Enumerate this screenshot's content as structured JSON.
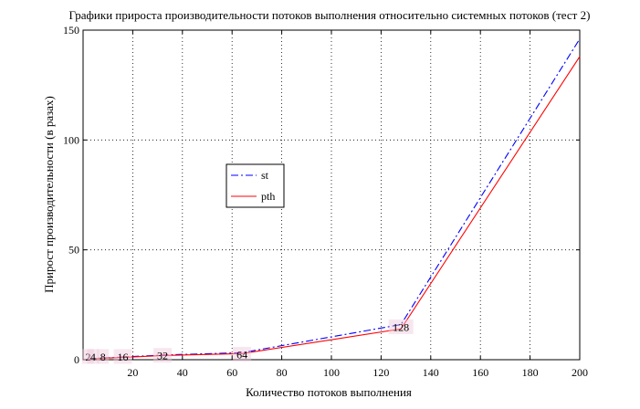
{
  "chart_data": {
    "type": "line",
    "title": "Графики прироста производительности потоков выполнения относительно системных потоков (тест 2)",
    "xlabel": "Количество потоков выполнения",
    "ylabel": "Прирост производительности (в разах)",
    "xlim": [
      0,
      200
    ],
    "ylim": [
      0,
      150
    ],
    "xticks": [
      20,
      40,
      60,
      80,
      100,
      120,
      140,
      160,
      180,
      200
    ],
    "yticks": [
      0,
      50,
      100,
      150
    ],
    "grid": true,
    "legend_position": "center-left",
    "series": [
      {
        "name": "st",
        "color": "#0000ff",
        "style": "dash-dot",
        "x": [
          2,
          4,
          8,
          16,
          32,
          64,
          128,
          200
        ],
        "y": [
          0.3,
          0.5,
          0.8,
          1.2,
          2.1,
          3.2,
          16,
          146
        ]
      },
      {
        "name": "pth",
        "color": "#ff0000",
        "style": "solid",
        "x": [
          2,
          4,
          8,
          16,
          32,
          64,
          128,
          200
        ],
        "y": [
          0.2,
          0.4,
          0.7,
          1.0,
          1.9,
          2.8,
          14,
          138
        ]
      }
    ],
    "annotations": [
      {
        "text": "2",
        "x": 2,
        "y": 1.5
      },
      {
        "text": "4",
        "x": 4,
        "y": 1.5
      },
      {
        "text": "8",
        "x": 8,
        "y": 1.5
      },
      {
        "text": "16",
        "x": 16,
        "y": 1.5
      },
      {
        "text": "32",
        "x": 32,
        "y": 2.0
      },
      {
        "text": "64",
        "x": 64,
        "y": 2.5
      },
      {
        "text": "128",
        "x": 128,
        "y": 15
      }
    ]
  }
}
